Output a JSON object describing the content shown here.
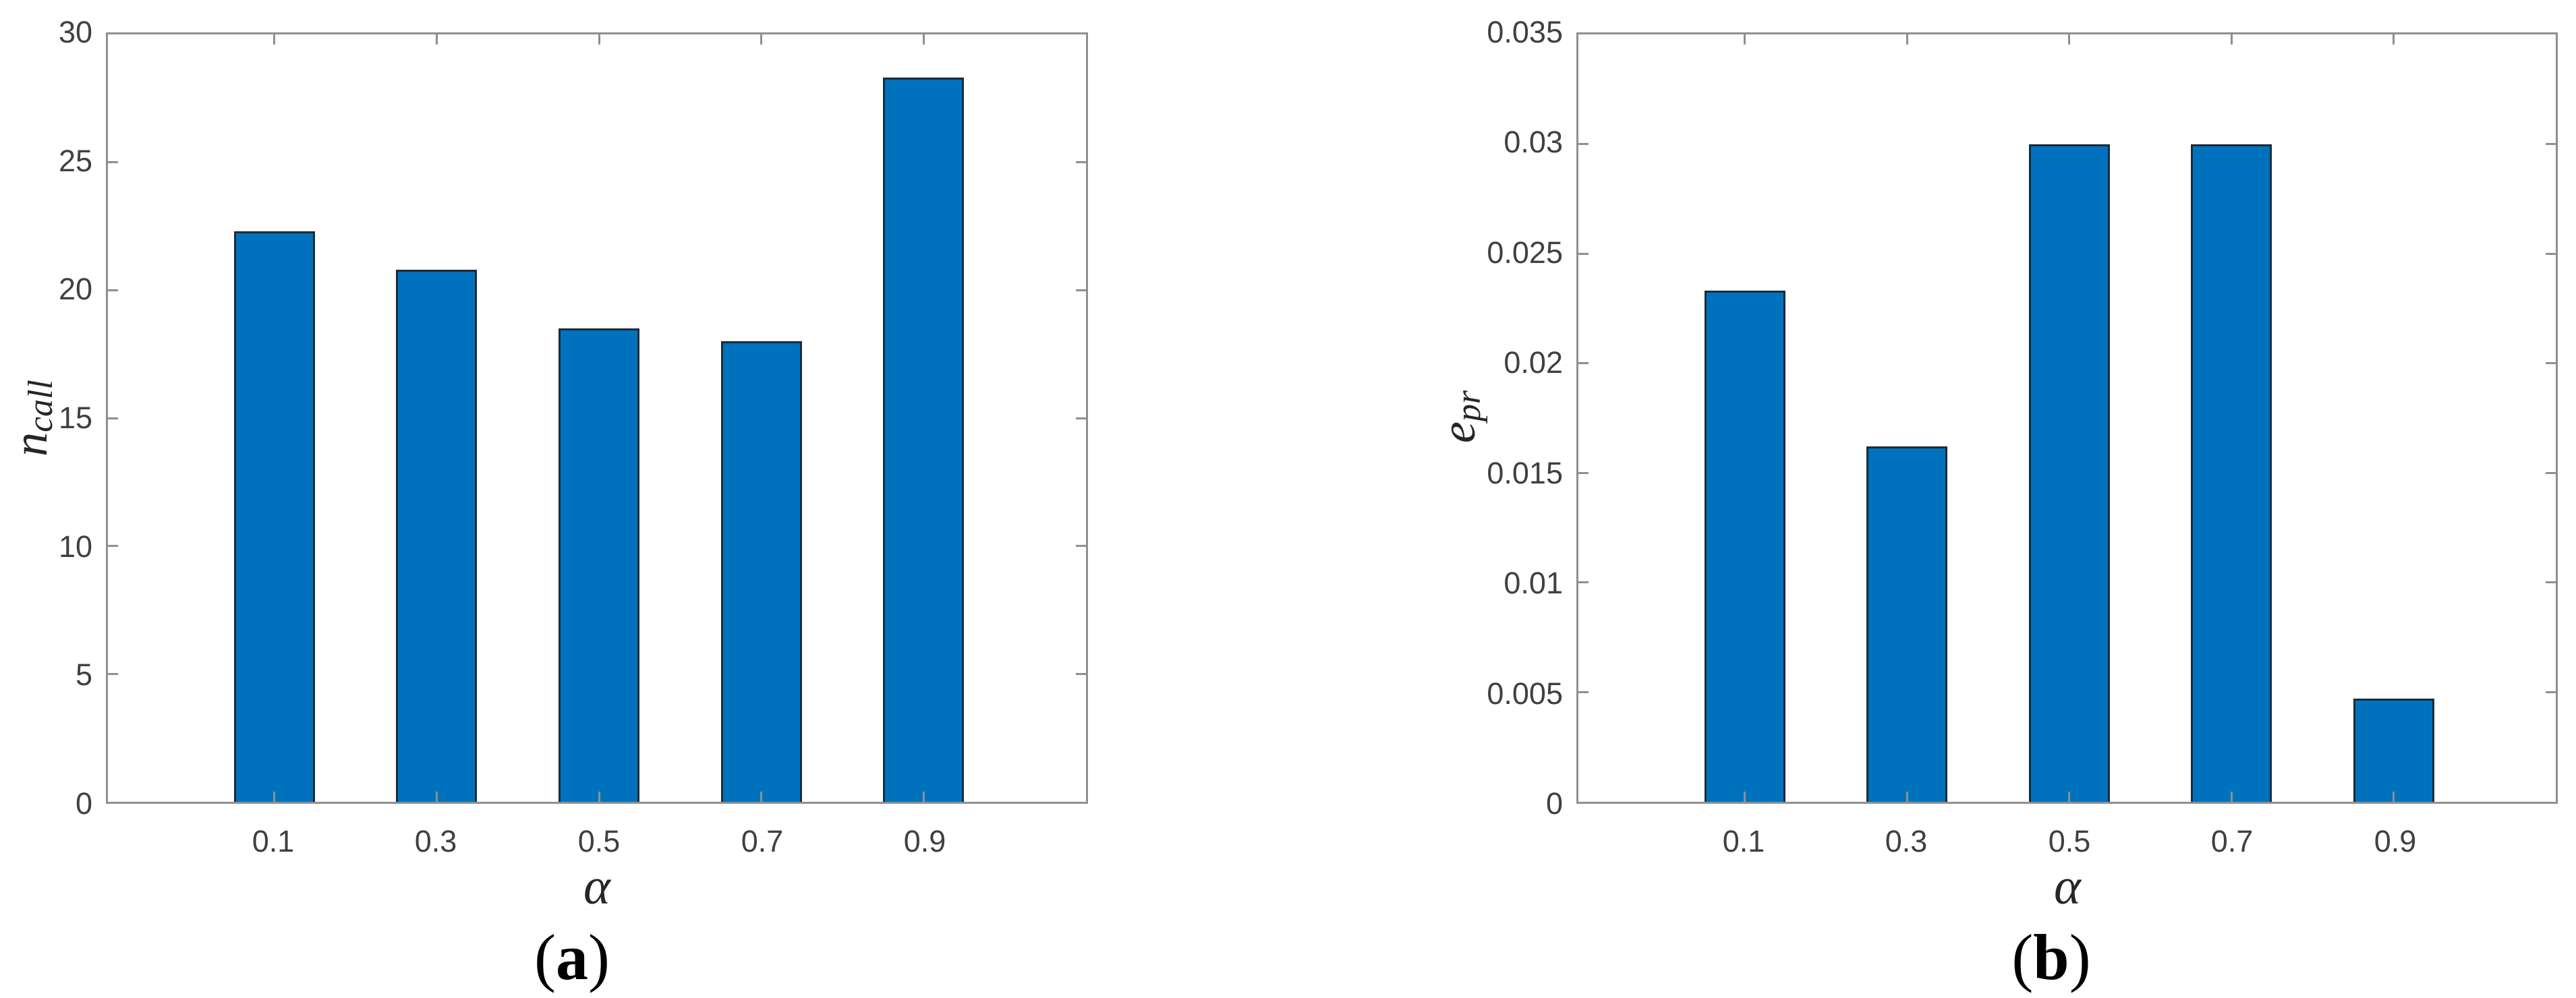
{
  "figure": {
    "background": "#ffffff",
    "panel_count": 2
  },
  "colors": {
    "bar_face": "#0072BD",
    "bar_edge": "#1b2b3a",
    "axis_spine": "#8f8f8f",
    "tick_text": "#404040",
    "math_label_text": "#262626",
    "caption_text": "#000000"
  },
  "chart_data": [
    {
      "type": "bar",
      "panel": "a",
      "caption": {
        "open": "(",
        "letter": "a",
        "close": ")"
      },
      "xlabel": "α",
      "ylabel": {
        "base": "n",
        "subscript": "call"
      },
      "categories": [
        "0.1",
        "0.3",
        "0.5",
        "0.7",
        "0.9"
      ],
      "x_values": [
        0.1,
        0.3,
        0.5,
        0.7,
        0.9
      ],
      "values": [
        22.3,
        20.8,
        18.5,
        18.0,
        28.3
      ],
      "ylim": [
        0,
        30
      ],
      "ytick_values": [
        0,
        5,
        10,
        15,
        20,
        25,
        30
      ],
      "ytick_labels": [
        "0",
        "5",
        "10",
        "15",
        "20",
        "25",
        "30"
      ],
      "xlim": [
        -0.105,
        1.1
      ],
      "bar_width_ratio": 0.5,
      "grid": false,
      "legend": null,
      "box": true
    },
    {
      "type": "bar",
      "panel": "b",
      "caption": {
        "open": "(",
        "letter": "b",
        "close": ")"
      },
      "xlabel": "α",
      "ylabel": {
        "base": "e",
        "subscript": "pr"
      },
      "categories": [
        "0.1",
        "0.3",
        "0.5",
        "0.7",
        "0.9"
      ],
      "x_values": [
        0.1,
        0.3,
        0.5,
        0.7,
        0.9
      ],
      "values": [
        0.0233,
        0.0162,
        0.03,
        0.03,
        0.0047
      ],
      "ylim": [
        0,
        0.035
      ],
      "ytick_values": [
        0,
        0.005,
        0.01,
        0.015,
        0.02,
        0.025,
        0.03,
        0.035
      ],
      "ytick_labels": [
        "0",
        "0.005",
        "0.01",
        "0.015",
        "0.02",
        "0.025",
        "0.03",
        "0.035"
      ],
      "xlim": [
        -0.105,
        1.1
      ],
      "bar_width_ratio": 0.5,
      "grid": false,
      "legend": null,
      "box": true
    }
  ]
}
